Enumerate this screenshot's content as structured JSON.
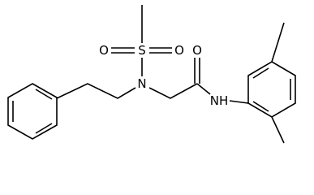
{
  "atoms": [
    {
      "label": "S"
    },
    {
      "label": "O"
    },
    {
      "label": "O"
    },
    {
      "label": "N"
    },
    {
      "label": "O"
    },
    {
      "label": "NH"
    }
  ]
}
